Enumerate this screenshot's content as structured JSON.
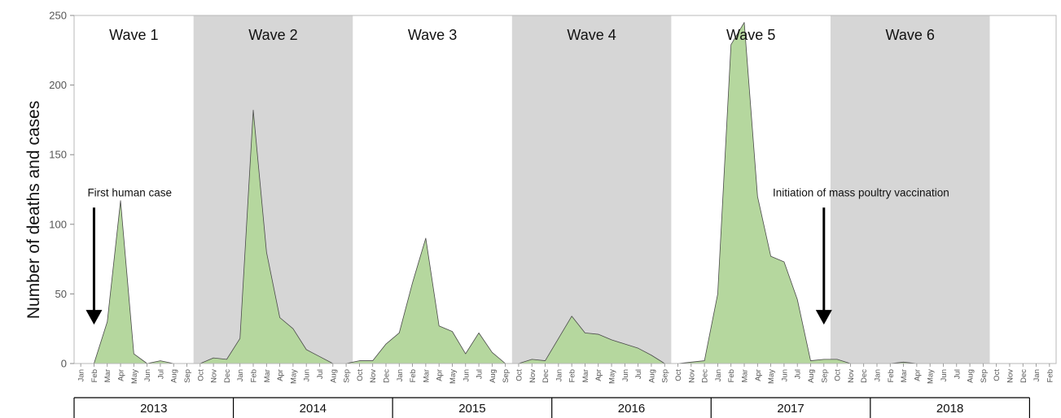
{
  "chart_data": {
    "type": "area",
    "title": "",
    "xlabel": "",
    "ylabel": "Number of deaths and cases",
    "ylim": [
      0,
      250
    ],
    "yticks": [
      0,
      50,
      100,
      150,
      200,
      250
    ],
    "grid": false,
    "colors": {
      "area_fill": "#b5d79e",
      "area_stroke": "#4a4a4a",
      "wave_shade": "#d6d6d6",
      "arrow": "#000000"
    },
    "x": [
      "Jan",
      "Feb",
      "Mar",
      "Apr",
      "May",
      "Jun",
      "Jul",
      "Aug",
      "Sep",
      "Oct",
      "Nov",
      "Dec",
      "Jan",
      "Feb",
      "Mar",
      "Apr",
      "May",
      "Jun",
      "Jul",
      "Aug",
      "Sep",
      "Oct",
      "Nov",
      "Dec",
      "Jan",
      "Feb",
      "Mar",
      "Apr",
      "May",
      "Jun",
      "Jul",
      "Aug",
      "Sep",
      "Oct",
      "Nov",
      "Dec",
      "Jan",
      "Feb",
      "Mar",
      "Apr",
      "May",
      "Jun",
      "Jul",
      "Aug",
      "Sep",
      "Oct",
      "Nov",
      "Dec",
      "Jan",
      "Feb",
      "Mar",
      "Apr",
      "May",
      "Jun",
      "Jul",
      "Aug",
      "Sep",
      "Oct",
      "Nov",
      "Dec",
      "Jan",
      "Feb",
      "Mar",
      "Apr",
      "May",
      "Jun",
      "Jul",
      "Aug",
      "Sep",
      "Oct",
      "Nov",
      "Dec",
      "Jan",
      "Feb"
    ],
    "values": [
      0,
      0,
      30,
      117,
      7,
      0,
      2,
      0,
      0,
      0,
      4,
      3,
      18,
      182,
      80,
      33,
      25,
      10,
      5,
      0,
      0,
      2,
      2,
      14,
      22,
      58,
      90,
      27,
      23,
      7,
      22,
      8,
      0,
      0,
      3,
      2,
      18,
      34,
      22,
      21,
      17,
      14,
      11,
      6,
      0,
      0,
      1,
      2,
      50,
      229,
      245,
      120,
      77,
      73,
      46,
      2,
      3,
      3,
      0,
      0,
      0,
      0,
      1,
      0,
      0,
      0,
      0,
      0,
      0,
      0,
      0,
      0,
      0,
      0
    ],
    "years": [
      "2013",
      "2014",
      "2015",
      "2016",
      "2017",
      "2018"
    ],
    "waves": [
      {
        "label": "Wave 1",
        "start": "2013-Jan",
        "end": "2013-Sep",
        "shaded": false
      },
      {
        "label": "Wave 2",
        "start": "2013-Oct",
        "end": "2014-Sep",
        "shaded": true
      },
      {
        "label": "Wave 3",
        "start": "2014-Oct",
        "end": "2015-Sep",
        "shaded": false
      },
      {
        "label": "Wave 4",
        "start": "2015-Oct",
        "end": "2016-Sep",
        "shaded": true
      },
      {
        "label": "Wave 5",
        "start": "2016-Oct",
        "end": "2017-Sep",
        "shaded": false
      },
      {
        "label": "Wave 6",
        "start": "2017-Oct",
        "end": "2018-Sep",
        "shaded": true
      }
    ],
    "annotations": [
      {
        "text": "First human case",
        "x": "2013-Feb",
        "arrow_from": 112,
        "arrow_to": 28
      },
      {
        "text": "Initiation of mass poultry vaccination",
        "x": "2017-Sep",
        "arrow_from": 112,
        "arrow_to": 28
      }
    ]
  }
}
